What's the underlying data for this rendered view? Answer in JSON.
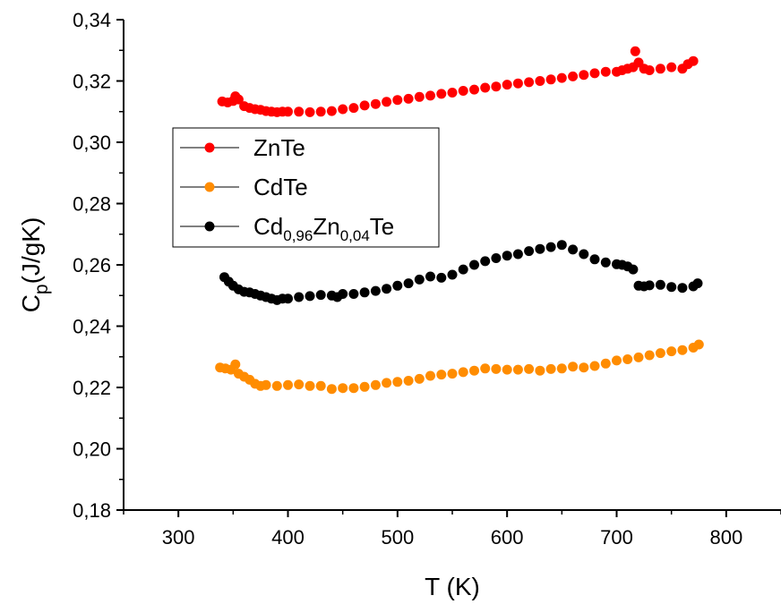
{
  "chart_data": {
    "type": "scatter",
    "title": "",
    "xlabel": "T (K)",
    "ylabel": "Cp(J/gK)",
    "ylabel_parts": {
      "main": "C",
      "sub": "p",
      "rest": "(J/gK)"
    },
    "xlim": [
      250,
      850
    ],
    "ylim": [
      0.18,
      0.34
    ],
    "xticks": [
      300,
      400,
      500,
      600,
      700,
      800
    ],
    "xtick_labels": [
      "300",
      "400",
      "500",
      "600",
      "700",
      "800"
    ],
    "yticks": [
      0.18,
      0.2,
      0.22,
      0.24,
      0.26,
      0.28,
      0.3,
      0.32,
      0.34
    ],
    "ytick_labels": [
      "0,18",
      "0,20",
      "0,22",
      "0,24",
      "0,26",
      "0,28",
      "0,30",
      "0,32",
      "0,34"
    ],
    "grid": false,
    "legend_position": "upper-left",
    "series": [
      {
        "name": "ZnTe",
        "name_parts": [
          {
            "t": "ZnTe",
            "s": false
          }
        ],
        "color": "#ff0000",
        "x": [
          340,
          345,
          350,
          352,
          355,
          360,
          365,
          370,
          375,
          380,
          385,
          390,
          395,
          400,
          410,
          420,
          430,
          440,
          450,
          460,
          470,
          480,
          490,
          500,
          510,
          520,
          530,
          540,
          550,
          560,
          570,
          580,
          590,
          600,
          610,
          620,
          630,
          640,
          650,
          660,
          670,
          680,
          690,
          700,
          705,
          710,
          715,
          717,
          720,
          725,
          730,
          740,
          750,
          760,
          765,
          770
        ],
        "y": [
          0.3133,
          0.313,
          0.3135,
          0.315,
          0.314,
          0.3118,
          0.3112,
          0.3108,
          0.3106,
          0.3102,
          0.31,
          0.3098,
          0.31,
          0.31,
          0.31,
          0.3098,
          0.31,
          0.3102,
          0.3108,
          0.3112,
          0.312,
          0.3125,
          0.3132,
          0.3138,
          0.3142,
          0.3148,
          0.3152,
          0.3158,
          0.3162,
          0.3168,
          0.3172,
          0.3178,
          0.3182,
          0.3188,
          0.3192,
          0.3196,
          0.32,
          0.3205,
          0.321,
          0.3215,
          0.322,
          0.3225,
          0.323,
          0.323,
          0.3235,
          0.324,
          0.3245,
          0.3297,
          0.326,
          0.324,
          0.3235,
          0.324,
          0.3245,
          0.324,
          0.3255,
          0.3265
        ]
      },
      {
        "name": "CdTe",
        "name_parts": [
          {
            "t": "CdTe",
            "s": false
          }
        ],
        "color": "#ff8c00",
        "x": [
          338,
          343,
          348,
          352,
          355,
          360,
          365,
          370,
          375,
          380,
          390,
          400,
          410,
          420,
          430,
          440,
          450,
          460,
          470,
          480,
          490,
          500,
          510,
          520,
          530,
          540,
          550,
          560,
          570,
          580,
          590,
          600,
          610,
          620,
          630,
          640,
          650,
          660,
          670,
          680,
          690,
          700,
          710,
          720,
          730,
          740,
          750,
          760,
          770,
          775
        ],
        "y": [
          0.2265,
          0.2262,
          0.2258,
          0.2275,
          0.2245,
          0.2235,
          0.2225,
          0.2212,
          0.2205,
          0.2208,
          0.2205,
          0.2208,
          0.221,
          0.2205,
          0.2205,
          0.2195,
          0.2198,
          0.2198,
          0.2202,
          0.2208,
          0.2215,
          0.2218,
          0.2222,
          0.2228,
          0.2238,
          0.2242,
          0.2245,
          0.225,
          0.2255,
          0.2262,
          0.226,
          0.2258,
          0.2258,
          0.226,
          0.2255,
          0.226,
          0.2262,
          0.2268,
          0.2265,
          0.227,
          0.2278,
          0.2288,
          0.2292,
          0.2298,
          0.2305,
          0.2312,
          0.2318,
          0.2322,
          0.233,
          0.234
        ]
      },
      {
        "name": "Cd0,96Zn0,04Te",
        "name_parts": [
          {
            "t": "Cd",
            "s": false
          },
          {
            "t": "0,96",
            "s": true
          },
          {
            "t": "Zn",
            "s": false
          },
          {
            "t": "0,04",
            "s": true
          },
          {
            "t": "Te",
            "s": false
          }
        ],
        "color": "#000000",
        "x": [
          342,
          346,
          350,
          355,
          360,
          365,
          370,
          375,
          380,
          385,
          390,
          395,
          400,
          410,
          420,
          430,
          440,
          445,
          450,
          460,
          470,
          480,
          490,
          500,
          510,
          520,
          530,
          540,
          550,
          560,
          570,
          580,
          590,
          600,
          610,
          620,
          630,
          640,
          650,
          660,
          670,
          680,
          690,
          700,
          705,
          710,
          715,
          720,
          725,
          730,
          740,
          750,
          760,
          770,
          774
        ],
        "y": [
          0.256,
          0.2545,
          0.2532,
          0.252,
          0.2512,
          0.251,
          0.2505,
          0.25,
          0.2495,
          0.249,
          0.2485,
          0.249,
          0.249,
          0.2495,
          0.2498,
          0.2502,
          0.25,
          0.2495,
          0.2505,
          0.2505,
          0.251,
          0.2515,
          0.2522,
          0.2532,
          0.254,
          0.2552,
          0.2562,
          0.2558,
          0.2568,
          0.2585,
          0.26,
          0.2612,
          0.2622,
          0.263,
          0.2635,
          0.2645,
          0.2652,
          0.2658,
          0.2665,
          0.265,
          0.2635,
          0.2618,
          0.2608,
          0.2602,
          0.26,
          0.2595,
          0.2585,
          0.2532,
          0.253,
          0.2533,
          0.2535,
          0.2528,
          0.2525,
          0.253,
          0.254
        ]
      }
    ]
  }
}
